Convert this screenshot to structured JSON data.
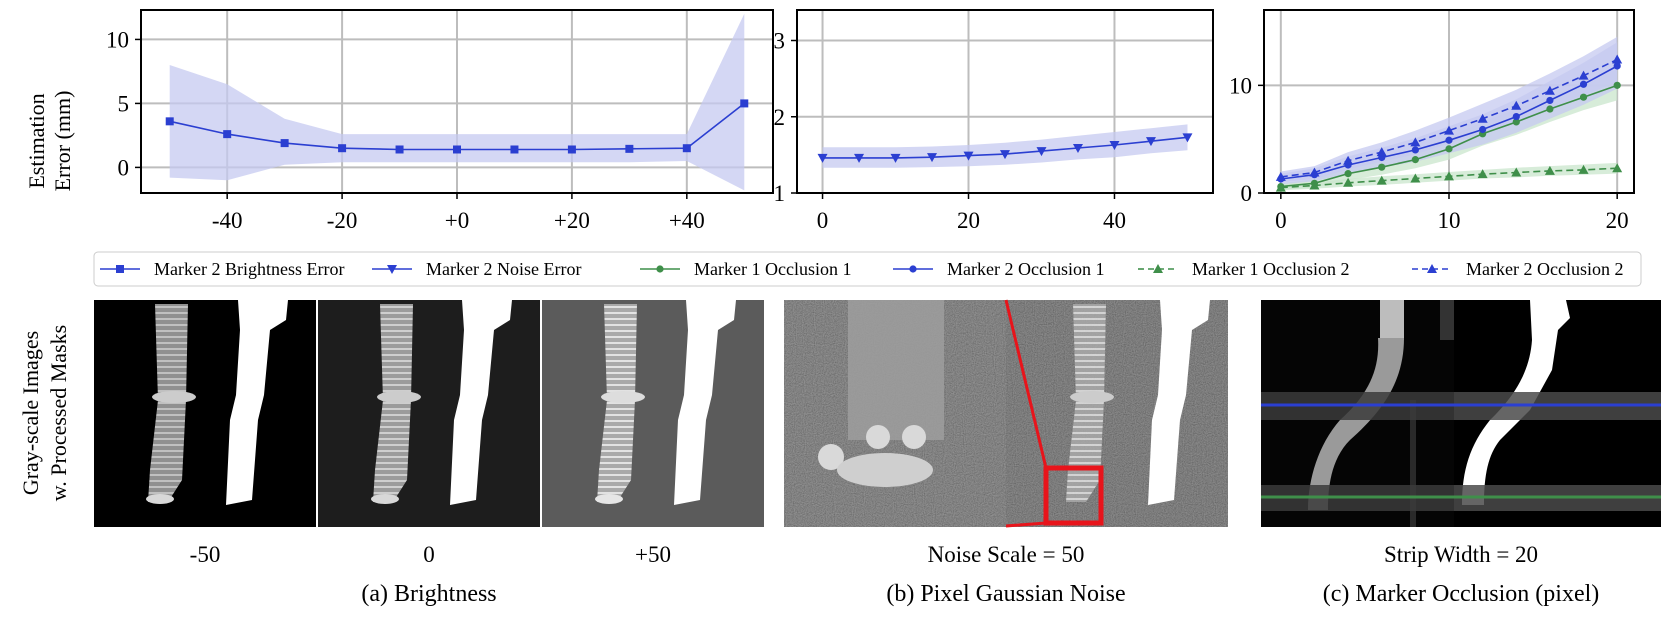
{
  "figure": {
    "ylabel_line1": "Estimation",
    "ylabel_line2": "Error (mm)",
    "image_row_label_line1": "Gray-scale Images",
    "image_row_label_line2": "w. Processed Masks",
    "legend": [
      {
        "label": "Marker 2 Brightness Error",
        "color": "#2b3fd1",
        "marker": "square",
        "dash": false
      },
      {
        "label": "Marker 2 Noise Error",
        "color": "#2b3fd1",
        "marker": "triangle-down",
        "dash": false
      },
      {
        "label": "Marker 1 Occlusion 1",
        "color": "#3f8f4a",
        "marker": "circle",
        "dash": false
      },
      {
        "label": "Marker 2 Occlusion 1",
        "color": "#2b3fd1",
        "marker": "circle",
        "dash": false
      },
      {
        "label": "Marker 1 Occlusion 2",
        "color": "#3f8f4a",
        "marker": "triangle-up",
        "dash": true
      },
      {
        "label": "Marker 2 Occlusion 2",
        "color": "#2b3fd1",
        "marker": "triangle-up",
        "dash": true
      }
    ],
    "images": {
      "brightness_labels": [
        "-50",
        "0",
        "+50"
      ],
      "noise_label": "Noise Scale = 50",
      "occlusion_label": "Strip Width = 20"
    },
    "captions": {
      "a": "(a) Brightness",
      "b": "(b) Pixel Gaussian Noise",
      "c": "(c) Marker Occlusion (pixel)"
    },
    "colors": {
      "blue": "#2b3fd1",
      "green": "#3f8f4a",
      "blue_band": "#c5c9f0",
      "green_band": "#c9e6cc"
    }
  },
  "chart_data": [
    {
      "type": "line",
      "id": "brightness",
      "xlim": [
        -55,
        55
      ],
      "ylim": [
        -2,
        12.3
      ],
      "xticks": [
        -40,
        -20,
        0,
        20,
        40
      ],
      "xtick_labels": [
        "-40",
        "-20",
        "+0",
        "+20",
        "+40"
      ],
      "yticks": [
        0,
        5,
        10
      ],
      "ytick_labels": [
        "0",
        "5",
        "10"
      ],
      "grid": true,
      "series": [
        {
          "name": "Marker 2 Brightness Error",
          "color": "#2b3fd1",
          "marker": "square",
          "x": [
            -50,
            -40,
            -30,
            -20,
            -10,
            0,
            10,
            20,
            30,
            40,
            50
          ],
          "y": [
            3.6,
            2.6,
            1.9,
            1.5,
            1.4,
            1.4,
            1.4,
            1.4,
            1.45,
            1.5,
            5.0
          ],
          "band_upper": [
            8.0,
            6.5,
            3.8,
            2.6,
            2.6,
            2.6,
            2.6,
            2.6,
            2.6,
            2.6,
            12.0
          ],
          "band_lower": [
            -0.8,
            -1.0,
            0.2,
            0.4,
            0.4,
            0.4,
            0.4,
            0.4,
            0.4,
            0.5,
            -1.8
          ]
        }
      ]
    },
    {
      "type": "line",
      "id": "noise",
      "xlim": [
        -3.5,
        53.5
      ],
      "ylim": [
        1,
        3.4
      ],
      "xticks": [
        0,
        20,
        40
      ],
      "xtick_labels": [
        "0",
        "20",
        "40"
      ],
      "yticks": [
        1,
        2,
        3
      ],
      "ytick_labels": [
        "1",
        "2",
        "3"
      ],
      "grid": true,
      "series": [
        {
          "name": "Marker 2 Noise Error",
          "color": "#2b3fd1",
          "marker": "triangle-down",
          "x": [
            0,
            5,
            10,
            15,
            20,
            25,
            30,
            35,
            40,
            45,
            50
          ],
          "y": [
            1.46,
            1.46,
            1.46,
            1.47,
            1.49,
            1.51,
            1.55,
            1.59,
            1.63,
            1.68,
            1.73
          ],
          "band_upper": [
            1.6,
            1.6,
            1.6,
            1.61,
            1.63,
            1.66,
            1.7,
            1.75,
            1.8,
            1.85,
            1.9
          ],
          "band_lower": [
            1.33,
            1.33,
            1.33,
            1.34,
            1.35,
            1.37,
            1.4,
            1.44,
            1.47,
            1.52,
            1.56
          ]
        }
      ]
    },
    {
      "type": "line",
      "id": "occlusion",
      "xlim": [
        -1,
        21
      ],
      "ylim": [
        0,
        17
      ],
      "xticks": [
        0,
        10,
        20
      ],
      "xtick_labels": [
        "0",
        "10",
        "20"
      ],
      "yticks": [
        0,
        10
      ],
      "ytick_labels": [
        "0",
        "10"
      ],
      "grid": true,
      "series": [
        {
          "name": "Marker 1 Occlusion 1",
          "color": "#3f8f4a",
          "marker": "circle",
          "dash": false,
          "x": [
            0,
            2,
            4,
            6,
            8,
            10,
            12,
            14,
            16,
            18,
            20
          ],
          "y": [
            0.6,
            0.9,
            1.8,
            2.4,
            3.1,
            4.1,
            5.5,
            6.6,
            7.8,
            8.9,
            10.0
          ],
          "band_upper": [
            0.9,
            1.3,
            2.4,
            3.2,
            4.0,
            5.2,
            6.6,
            7.8,
            9.0,
            10.2,
            11.5
          ],
          "band_lower": [
            0.3,
            0.5,
            1.2,
            1.7,
            2.3,
            3.1,
            4.4,
            5.4,
            6.6,
            7.7,
            8.6
          ]
        },
        {
          "name": "Marker 2 Occlusion 1",
          "color": "#2b3fd1",
          "marker": "circle",
          "dash": false,
          "x": [
            0,
            2,
            4,
            6,
            8,
            10,
            12,
            14,
            16,
            18,
            20
          ],
          "y": [
            1.3,
            1.7,
            2.6,
            3.3,
            4.0,
            4.9,
            5.9,
            7.1,
            8.6,
            10.1,
            11.8
          ],
          "band_upper": [
            1.8,
            2.3,
            3.4,
            4.2,
            5.1,
            6.2,
            7.3,
            8.7,
            10.4,
            12.1,
            14.0
          ],
          "band_lower": [
            0.8,
            1.1,
            1.8,
            2.4,
            2.9,
            3.7,
            4.5,
            5.6,
            6.9,
            8.2,
            9.7
          ]
        },
        {
          "name": "Marker 1 Occlusion 2",
          "color": "#3f8f4a",
          "marker": "triangle-up",
          "dash": true,
          "x": [
            0,
            2,
            4,
            6,
            8,
            10,
            12,
            14,
            16,
            18,
            20
          ],
          "y": [
            0.5,
            0.7,
            0.95,
            1.15,
            1.35,
            1.55,
            1.75,
            1.9,
            2.05,
            2.15,
            2.3
          ],
          "band_upper": [
            0.8,
            1.0,
            1.3,
            1.55,
            1.75,
            1.95,
            2.15,
            2.35,
            2.5,
            2.65,
            2.8
          ],
          "band_lower": [
            0.25,
            0.4,
            0.6,
            0.75,
            0.95,
            1.15,
            1.35,
            1.45,
            1.6,
            1.7,
            1.8
          ]
        },
        {
          "name": "Marker 2 Occlusion 2",
          "color": "#2b3fd1",
          "marker": "triangle-up",
          "dash": true,
          "x": [
            0,
            2,
            4,
            6,
            8,
            10,
            12,
            14,
            16,
            18,
            20
          ],
          "y": [
            1.5,
            1.9,
            3.0,
            3.8,
            4.7,
            5.8,
            6.9,
            8.1,
            9.5,
            10.9,
            12.4
          ],
          "band_upper": [
            2.0,
            2.5,
            3.8,
            4.7,
            5.8,
            7.0,
            8.3,
            9.6,
            11.1,
            12.7,
            14.5
          ],
          "band_lower": [
            1.0,
            1.3,
            2.2,
            2.9,
            3.6,
            4.6,
            5.5,
            6.6,
            7.9,
            9.1,
            10.3
          ]
        }
      ]
    }
  ]
}
